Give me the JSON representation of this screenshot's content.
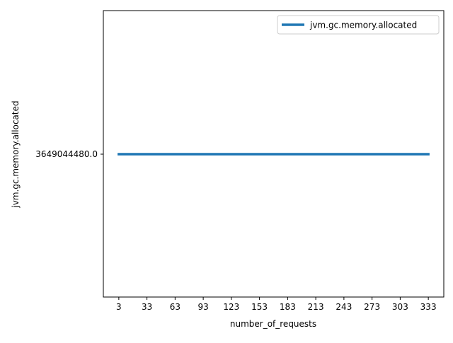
{
  "chart_data": {
    "type": "line",
    "title": "",
    "xlabel": "number_of_requests",
    "ylabel": "jvm.gc.memory.allocated",
    "x": [
      3,
      33,
      63,
      93,
      123,
      153,
      183,
      213,
      243,
      273,
      303,
      333
    ],
    "x_tick_labels": [
      "3",
      "33",
      "63",
      "93",
      "123",
      "153",
      "183",
      "213",
      "243",
      "273",
      "303",
      "333"
    ],
    "y_tick_labels": [
      "3649044480.0"
    ],
    "y_ticks": [
      3649044480.0
    ],
    "series": [
      {
        "name": "jvm.gc.memory.allocated",
        "color": "#1f77b4",
        "values": [
          3649044480.0,
          3649044480.0,
          3649044480.0,
          3649044480.0,
          3649044480.0,
          3649044480.0,
          3649044480.0,
          3649044480.0,
          3649044480.0,
          3649044480.0,
          3649044480.0,
          3649044480.0
        ]
      }
    ],
    "legend_position": "top-right",
    "grid": false
  }
}
